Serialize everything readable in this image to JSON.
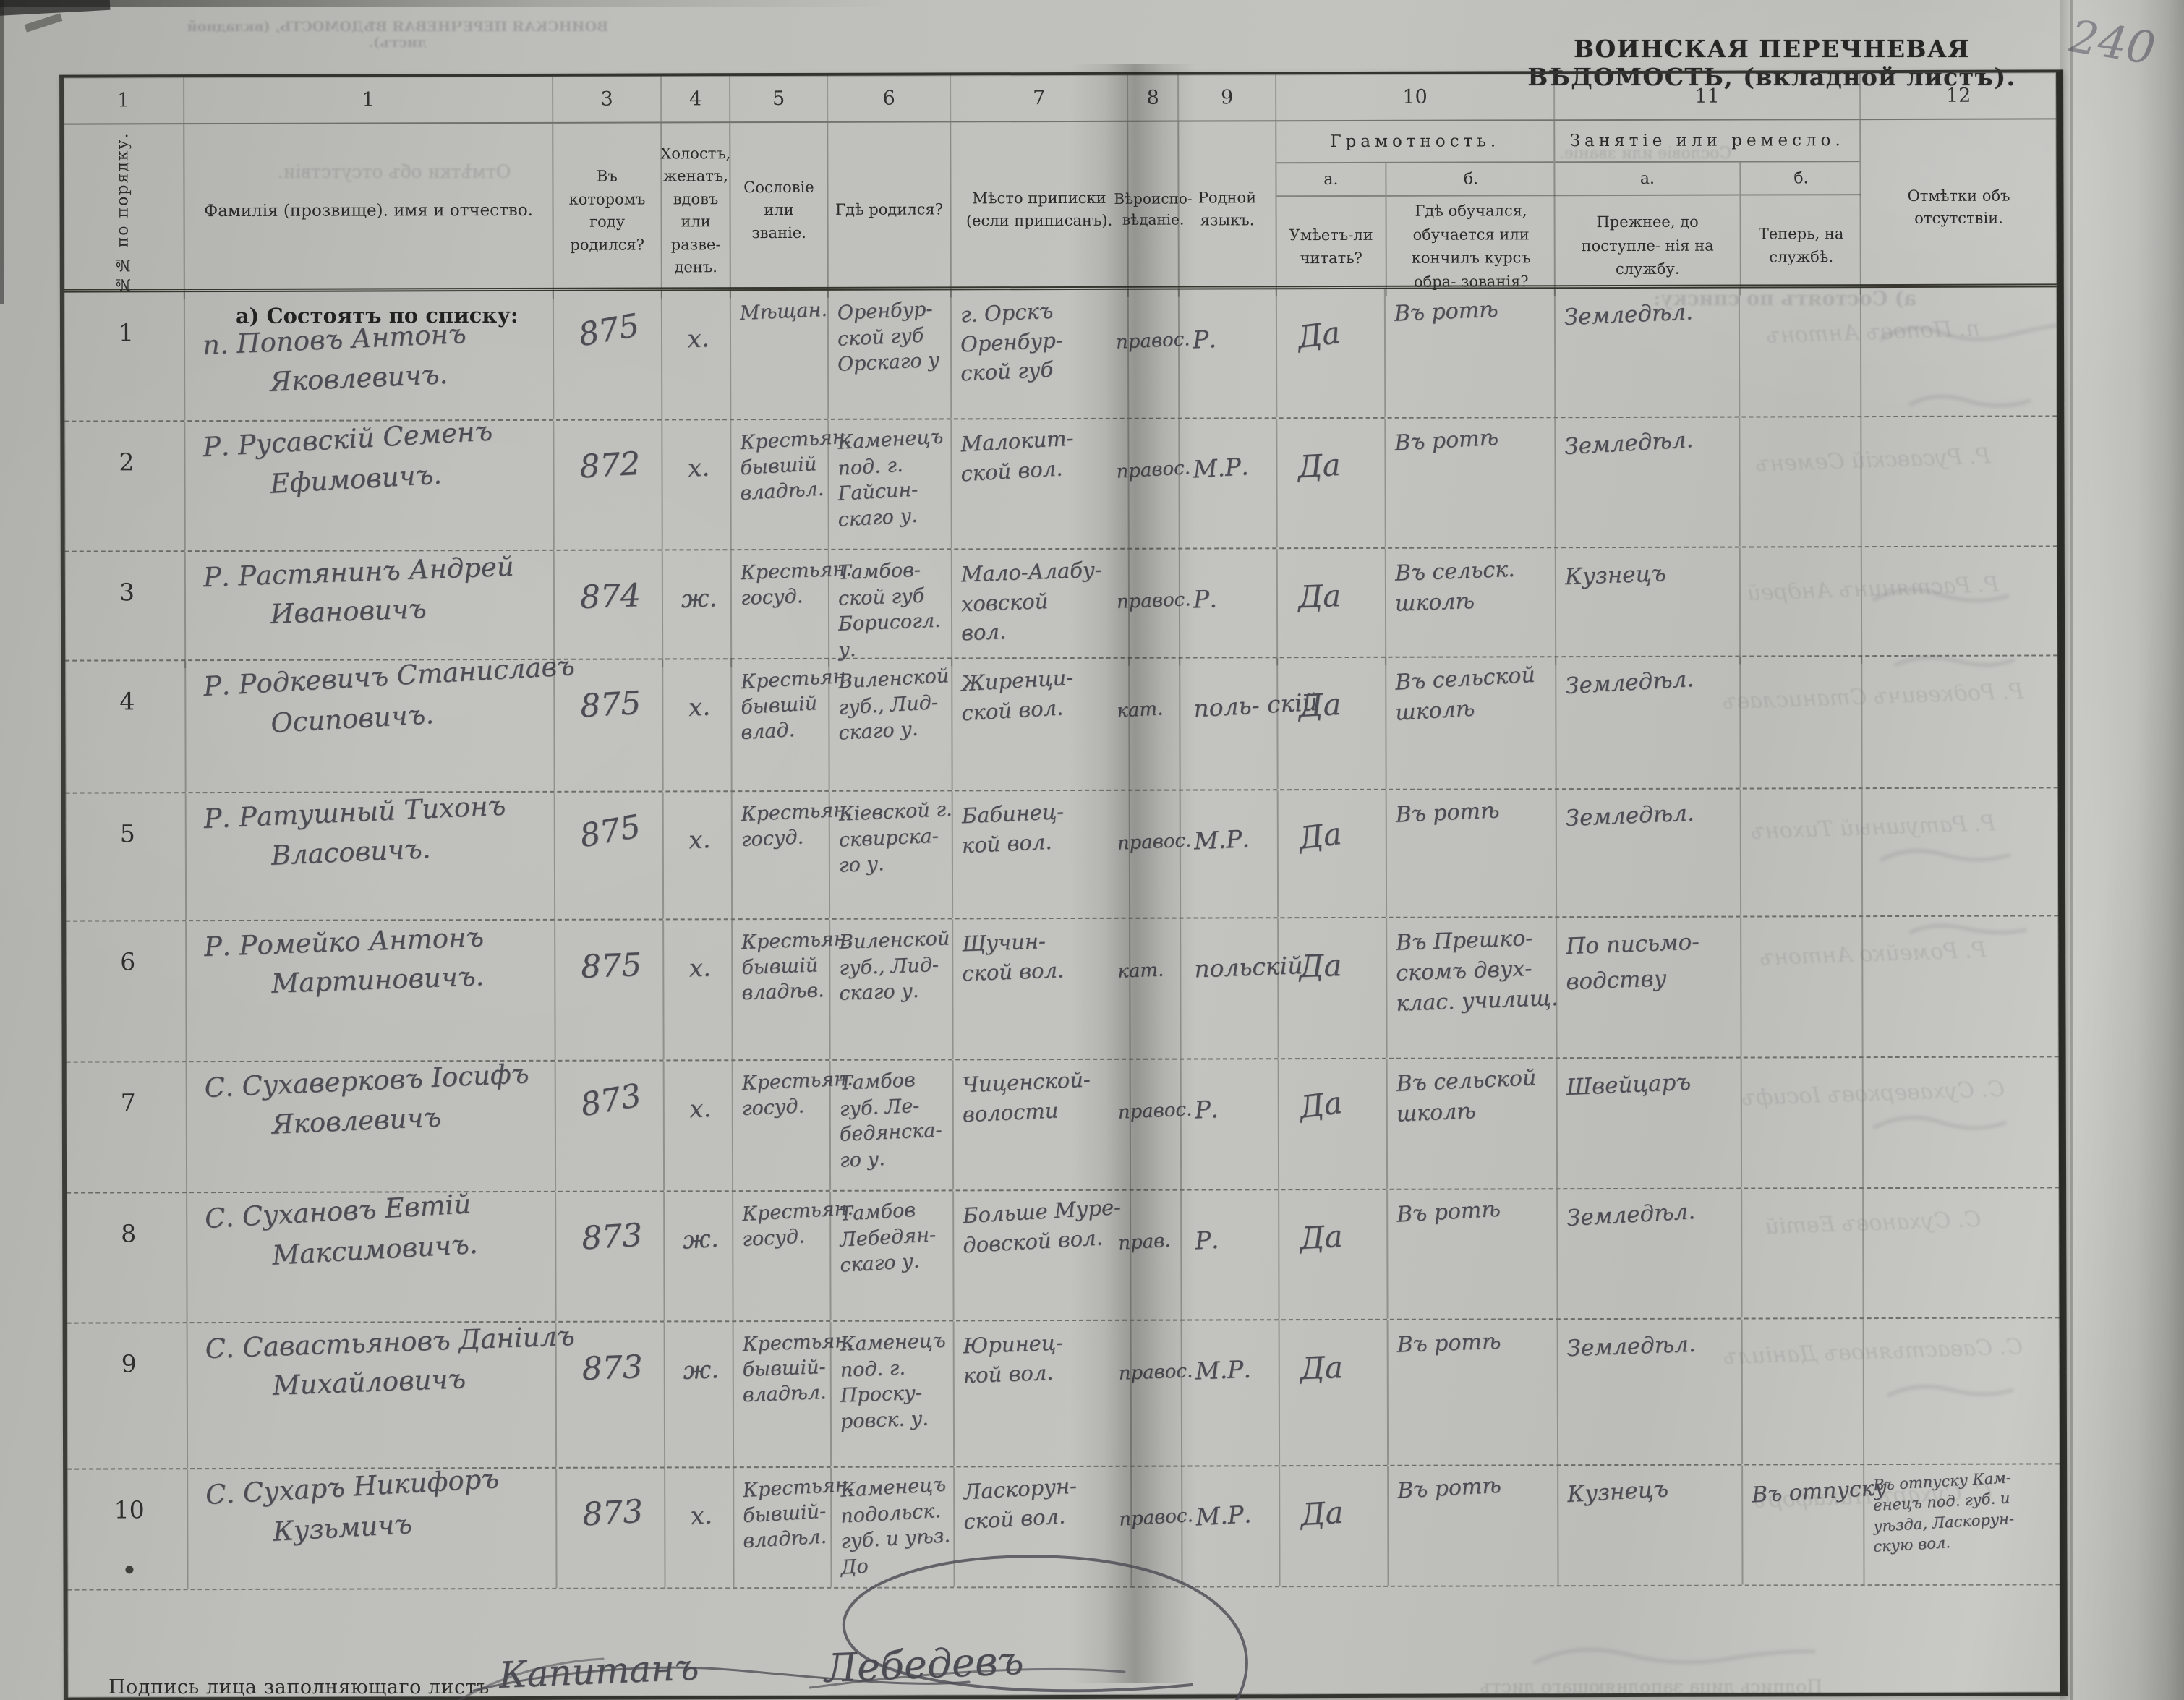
{
  "page": {
    "title": "ВОИНСКАЯ ПЕРЕЧНЕВАЯ ВѢДОМОСТЬ, (вкладной листъ).",
    "page_number": "240",
    "footer": {
      "label": "Подпись лица заполняющаго листъ",
      "signature_rank": "Капитанъ",
      "signature_name": "Лебедевъ"
    }
  },
  "table": {
    "column_numbers": [
      "1",
      "1",
      "3",
      "4",
      "5",
      "6",
      "7",
      "8",
      "9",
      "10",
      "11",
      "12"
    ],
    "headers": {
      "col1": "№№ по порядку.",
      "col2": "Фамилія (прозвище). имя и отчество.",
      "col3": "Въ которомъ году родился?",
      "col4": "Холостъ, женатъ, вдовъ или разве- денъ.",
      "col5": "Сословіе или званіе.",
      "col6": "Гдѣ родился?",
      "col7": "Мѣсто приписки (если приписанъ).",
      "col8": "Вѣроиспо- вѣданіе.",
      "col9": "Родной языкъ.",
      "col10_group": "Грамотность.",
      "col10a_letter": "а.",
      "col10a": "Умѣетъ-ли читать?",
      "col10b_letter": "б.",
      "col10b": "Гдѣ обучался, обучается или кончилъ курсъ обра- зованія?",
      "col11_group": "Занятіе или ремесло.",
      "col11a_letter": "а.",
      "col11a": "Прежнее, до поступле- нія на службу.",
      "col11b_letter": "б.",
      "col11b": "Теперь, на службѣ.",
      "col12": "Отмѣтки объ отсутствіи."
    },
    "section_header": "а) Состоятъ по списку:",
    "rows": [
      {
        "num": "1",
        "name_lines": [
          "п. Поповъ Антонъ",
          "Яковлевичъ."
        ],
        "birth_year": "875",
        "marital": "х.",
        "estate_lines": [
          "Мѣщан."
        ],
        "birthplace_lines": [
          "Оренбур-",
          "ской губ",
          "Орскаго у"
        ],
        "registry_lines": [
          "г. Орскъ",
          "Оренбур-",
          "ской губ"
        ],
        "faith": "правос.",
        "language": "Р.",
        "reads": "Да",
        "education_lines": [
          "Въ ротѣ"
        ],
        "occupation_before_lines": [
          "Земледѣл."
        ],
        "occupation_now_lines": [],
        "absence_lines": []
      },
      {
        "num": "2",
        "name_lines": [
          "Р. Русавскій Семенъ",
          "Ефимовичъ."
        ],
        "birth_year": "872",
        "marital": "х.",
        "estate_lines": [
          "Крестьян.",
          "бывшій",
          "владѣл."
        ],
        "birthplace_lines": [
          "Каменецъ",
          "под. г.",
          "Гайсин-",
          "скаго у."
        ],
        "registry_lines": [
          "Малокит-",
          "ской вол."
        ],
        "faith": "правос.",
        "language": "М.Р.",
        "reads": "Да",
        "education_lines": [
          "Въ ротѣ"
        ],
        "occupation_before_lines": [
          "Земледѣл."
        ],
        "occupation_now_lines": [],
        "absence_lines": []
      },
      {
        "num": "3",
        "name_lines": [
          "Р. Растянинъ Андрей",
          "Ивановичъ"
        ],
        "birth_year": "874",
        "marital": "ж.",
        "estate_lines": [
          "Крестьян.",
          "госуд."
        ],
        "birthplace_lines": [
          "Тамбов-",
          "ской губ",
          "Борисогл.",
          "у."
        ],
        "registry_lines": [
          "Мало-Алабу-",
          "ховской",
          "вол."
        ],
        "faith": "правос.",
        "language": "Р.",
        "reads": "Да",
        "education_lines": [
          "Въ сельск.",
          "школѣ"
        ],
        "occupation_before_lines": [
          "Кузнецъ"
        ],
        "occupation_now_lines": [],
        "absence_lines": []
      },
      {
        "num": "4",
        "name_lines": [
          "Р. Родкевичъ Станиславъ",
          "Осиповичъ."
        ],
        "birth_year": "875",
        "marital": "х.",
        "estate_lines": [
          "Крестьян.",
          "бывшій",
          "влад."
        ],
        "birthplace_lines": [
          "Виленской",
          "губ., Лид-",
          "скаго у."
        ],
        "registry_lines": [
          "Жиренци-",
          "ской вол."
        ],
        "faith": "кат.",
        "language": "поль- скій",
        "reads": "Да",
        "education_lines": [
          "Въ сельской",
          "школѣ"
        ],
        "occupation_before_lines": [
          "Земледѣл."
        ],
        "occupation_now_lines": [],
        "absence_lines": []
      },
      {
        "num": "5",
        "name_lines": [
          "Р. Ратушный Тихонъ",
          "Власовичъ."
        ],
        "birth_year": "875",
        "marital": "х.",
        "estate_lines": [
          "Крестьян.",
          "госуд."
        ],
        "birthplace_lines": [
          "Кіевской г.",
          "сквирска-",
          "го у."
        ],
        "registry_lines": [
          "Бабинец-",
          "кой вол."
        ],
        "faith": "правос.",
        "language": "М.Р.",
        "reads": "Да",
        "education_lines": [
          "Въ ротѣ"
        ],
        "occupation_before_lines": [
          "Земледѣл."
        ],
        "occupation_now_lines": [],
        "absence_lines": []
      },
      {
        "num": "6",
        "name_lines": [
          "Р. Ромейко Антонъ",
          "Мартиновичъ."
        ],
        "birth_year": "875",
        "marital": "х.",
        "estate_lines": [
          "Крестьян.",
          "бывшій",
          "владѣв."
        ],
        "birthplace_lines": [
          "Виленской",
          "губ., Лид-",
          "скаго у."
        ],
        "registry_lines": [
          "Щучин-",
          "ской вол."
        ],
        "faith": "кат.",
        "language": "польскій",
        "reads": "Да",
        "education_lines": [
          "Въ Прешко-",
          "скомъ двух-",
          "клас. училищ."
        ],
        "occupation_before_lines": [
          "По письмо-",
          "водству"
        ],
        "occupation_now_lines": [],
        "absence_lines": []
      },
      {
        "num": "7",
        "name_lines": [
          "С. Сухаверковъ Іосифъ",
          "Яковлевичъ"
        ],
        "birth_year": "873",
        "marital": "х.",
        "estate_lines": [
          "Крестьян.",
          "госуд."
        ],
        "birthplace_lines": [
          "Тамбов",
          "губ. Ле-",
          "бедянска-",
          "го у."
        ],
        "registry_lines": [
          "Чиценской-",
          "волости"
        ],
        "faith": "правос.",
        "language": "Р.",
        "reads": "Да",
        "education_lines": [
          "Въ сельской",
          "школѣ"
        ],
        "occupation_before_lines": [
          "Швейцаръ"
        ],
        "occupation_now_lines": [],
        "absence_lines": []
      },
      {
        "num": "8",
        "name_lines": [
          "С. Сухановъ Евтій",
          "Максимовичъ."
        ],
        "birth_year": "873",
        "marital": "ж.",
        "estate_lines": [
          "Крестьян.",
          "госуд."
        ],
        "birthplace_lines": [
          "Тамбов",
          "Лебедян-",
          "скаго у."
        ],
        "registry_lines": [
          "Больше Муре-",
          "довской вол."
        ],
        "faith": "прав.",
        "language": "Р.",
        "reads": "Да",
        "education_lines": [
          "Въ ротѣ"
        ],
        "occupation_before_lines": [
          "Земледѣл."
        ],
        "occupation_now_lines": [],
        "absence_lines": []
      },
      {
        "num": "9",
        "name_lines": [
          "С. Савастьяновъ Даніилъ",
          "Михайловичъ"
        ],
        "birth_year": "873",
        "marital": "ж.",
        "estate_lines": [
          "Крестьян.",
          "бывшій-",
          "владѣл."
        ],
        "birthplace_lines": [
          "Каменецъ",
          "под. г.",
          "Проску-",
          "ровск. у."
        ],
        "registry_lines": [
          "Юринец-",
          "кой вол."
        ],
        "faith": "правос.",
        "language": "М.Р.",
        "reads": "Да",
        "education_lines": [
          "Въ ротѣ"
        ],
        "occupation_before_lines": [
          "Земледѣл."
        ],
        "occupation_now_lines": [],
        "absence_lines": []
      },
      {
        "num": "10",
        "num_mark": "•",
        "name_lines": [
          "С. Сухаръ Никифоръ",
          "Кузьмичъ"
        ],
        "birth_year": "873",
        "marital": "х.",
        "estate_lines": [
          "Крестьян.",
          "бывшій-",
          "владѣл."
        ],
        "birthplace_lines": [
          "Каменецъ",
          "подольск.",
          "губ. и уѣз.",
          "До"
        ],
        "registry_lines": [
          "Ласкорун-",
          "ской вол."
        ],
        "faith": "правос.",
        "language": "М.Р.",
        "reads": "Да",
        "education_lines": [
          "Въ ротѣ"
        ],
        "occupation_before_lines": [
          "Кузнецъ"
        ],
        "occupation_now_lines": [
          "Въ отпуску"
        ],
        "absence_lines": [
          "Въ отпуску Кам-",
          "енецъ под. губ. и",
          "уѣзда, Ласкорун-",
          "скую вол."
        ]
      }
    ]
  }
}
